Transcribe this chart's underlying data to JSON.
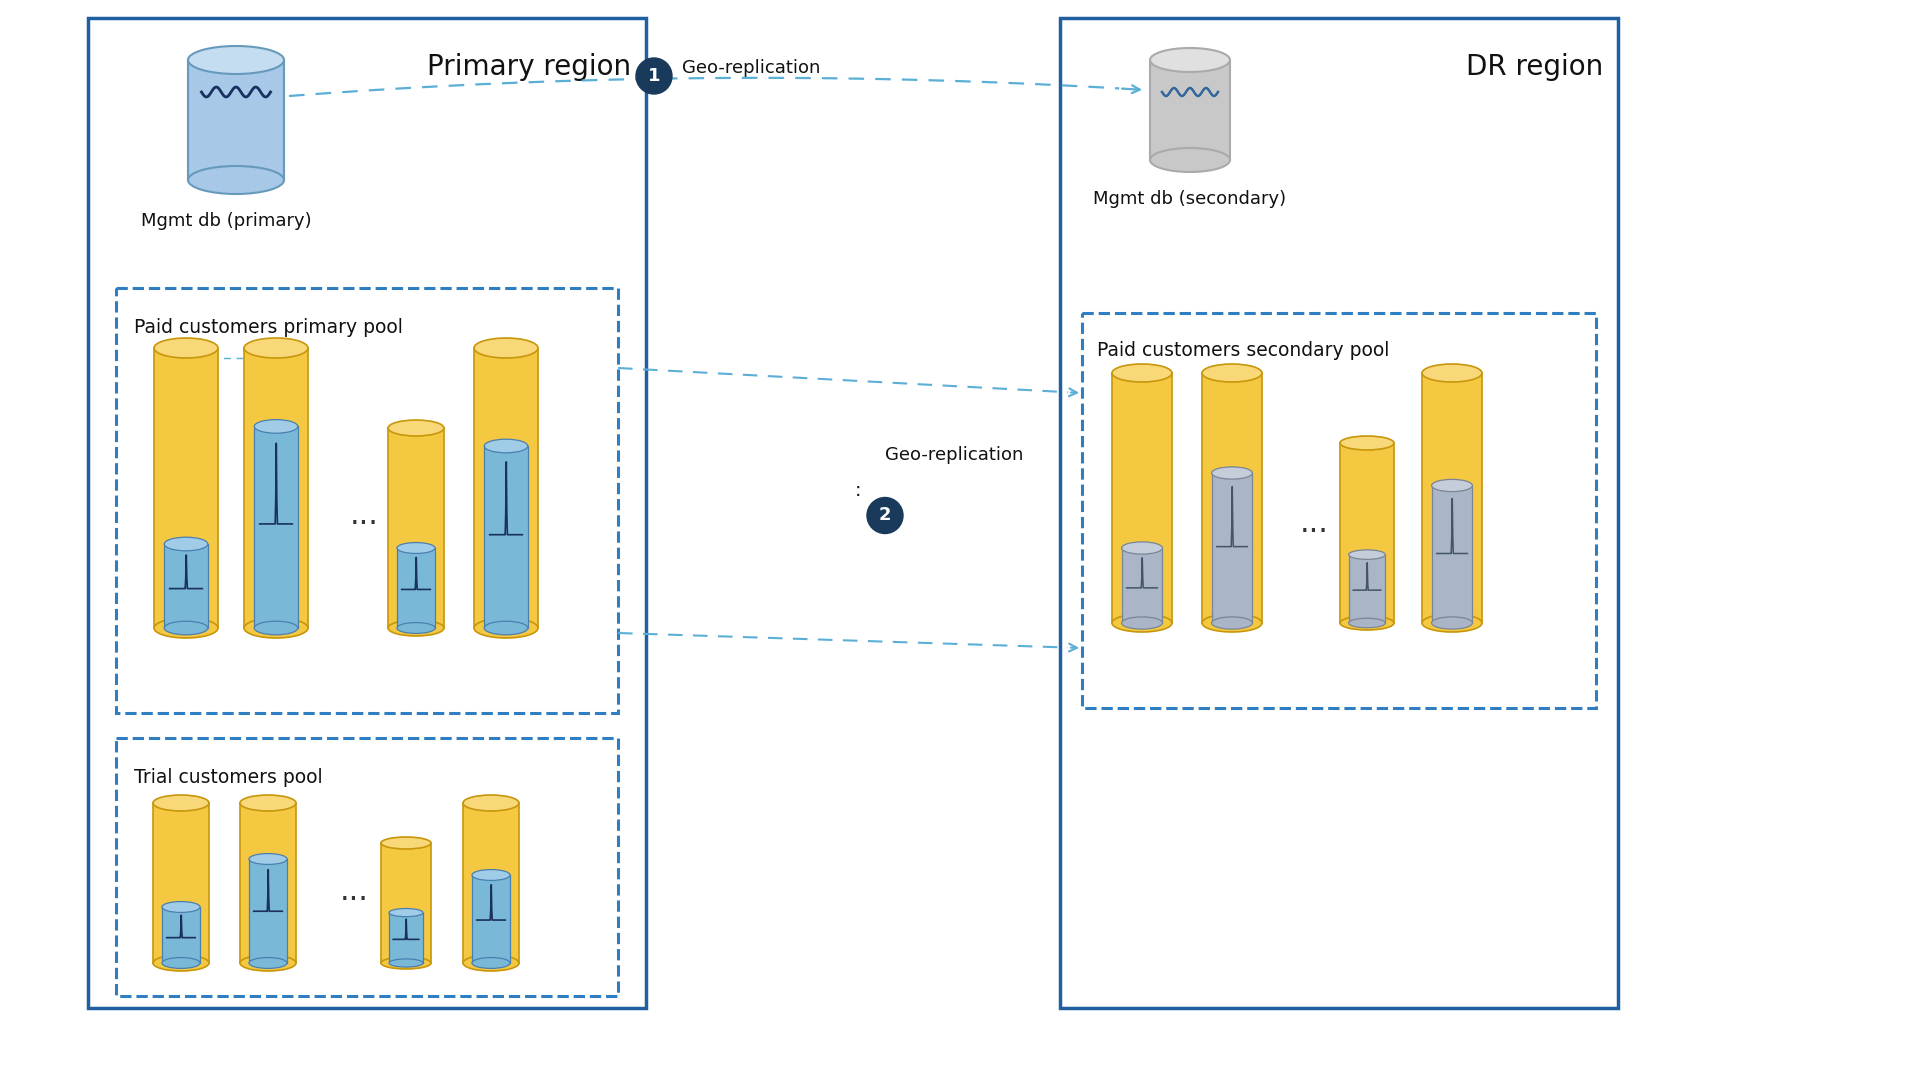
{
  "primary_region_title": "Primary region",
  "dr_region_title": "DR region",
  "mgmt_primary_label": "Mgmt db (primary)",
  "mgmt_secondary_label": "Mgmt db (secondary)",
  "paid_primary_label": "Paid customers primary pool",
  "paid_secondary_label": "Paid customers secondary pool",
  "trial_label": "Trial customers pool",
  "geo_rep_label": "Geo-replication",
  "circle1_label": "1",
  "circle2_label": "2",
  "arrow_color": "#5bafd6",
  "bg_color": "#ffffff",
  "box_edge_color": "#2060a0",
  "dash_box_color": "#2e7ec1",
  "circle_bg": "#1a3a5c"
}
